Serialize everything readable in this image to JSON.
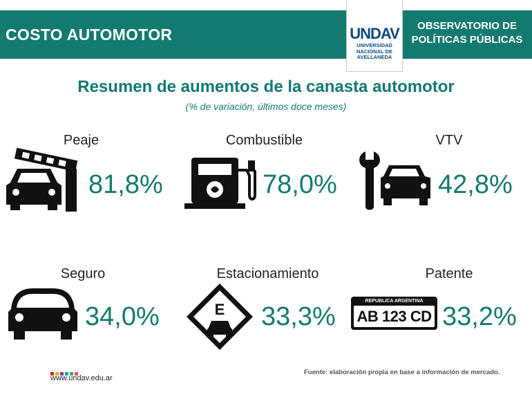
{
  "header": {
    "section_title": "COSTO AUTOMOTOR",
    "logo_mark": "UNDAV",
    "logo_lines": [
      "UNIVERSIDAD",
      "NACIONAL DE",
      "AVELLANEDA"
    ],
    "observatory_line1": "OBSERVATORIO DE",
    "observatory_line2": "POLÍTICAS PÚBLICAS"
  },
  "title": "Resumen de aumentos de la canasta automotor",
  "subtitle": "(% de variación, últimos doce meses)",
  "items": [
    {
      "label": "Peaje",
      "value": "81,8%",
      "icon": "toll-car-icon"
    },
    {
      "label": "Combustible",
      "value": "78,0%",
      "icon": "fuel-pump-icon"
    },
    {
      "label": "VTV",
      "value": "42,8%",
      "icon": "wrench-car-icon"
    },
    {
      "label": "Seguro",
      "value": "34,0%",
      "icon": "car-icon"
    },
    {
      "label": "Estacionamiento",
      "value": "33,3%",
      "icon": "parking-sign-icon"
    },
    {
      "label": "Patente",
      "value": "33,2%",
      "icon": "license-plate-icon"
    }
  ],
  "plate": {
    "country": "REPUBLICA ARGENTINA",
    "number": "AB 123 CD"
  },
  "parking_letter": "E",
  "footer": {
    "url": "www.undav.edu.ar",
    "source": "Fuente: elaboración propia en base a información de mercado.",
    "dot_colors": [
      "#e2232a",
      "#f5a623",
      "#7b3f98",
      "#1a9ad6",
      "#3bb54a",
      "#e94e8a"
    ]
  },
  "colors": {
    "accent": "#137a6f",
    "logo": "#0b4a80"
  }
}
